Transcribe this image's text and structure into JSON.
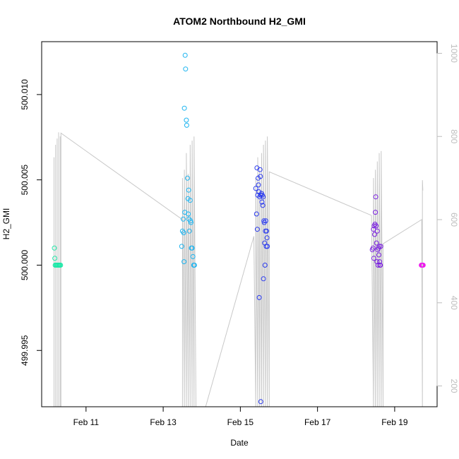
{
  "chart_data": {
    "type": "scatter",
    "title": "ATOM2 Northbound H2_GMI",
    "xlabel": "Date",
    "ylabel": "H2_GMI",
    "x_ticks": [
      {
        "label": "Feb 11",
        "value": 11
      },
      {
        "label": "Feb 13",
        "value": 13
      },
      {
        "label": "Feb 15",
        "value": 15
      },
      {
        "label": "Feb 17",
        "value": 17
      },
      {
        "label": "Feb 19",
        "value": 19
      }
    ],
    "xlim": [
      9.85,
      20.1
    ],
    "ylim": [
      499.9917,
      500.0131
    ],
    "y_ticks": [
      {
        "label": "499.995",
        "value": 499.995
      },
      {
        "label": "500.000",
        "value": 500.0
      },
      {
        "label": "500.005",
        "value": 500.005
      },
      {
        "label": "500.010",
        "value": 500.01
      }
    ],
    "y2_ticks": [
      {
        "label": "200",
        "value": 200
      },
      {
        "label": "400",
        "value": 400
      },
      {
        "label": "600",
        "value": 600
      },
      {
        "label": "800",
        "value": 800
      },
      {
        "label": "1000",
        "value": 1000
      }
    ],
    "y2lim": [
      1028,
      150
    ],
    "colors": {
      "pressure": "#c8c8c8",
      "axis": "#000000",
      "right_axis": "#bdbdbd",
      "group_feb10": "#1ee8a8",
      "group_feb13": "#1cb4f0",
      "group_feb15": "#2a3aee",
      "group_feb18": "#7a20e0",
      "group_feb19": "#ee1cee"
    },
    "series": [
      {
        "color_key": "group_feb10",
        "points": [
          [
            10.18,
            500.001
          ],
          [
            10.19,
            500.0004
          ],
          [
            10.2,
            500.0
          ],
          [
            10.22,
            500.0
          ],
          [
            10.24,
            500.0
          ],
          [
            10.26,
            500.0
          ],
          [
            10.28,
            500.0
          ],
          [
            10.3,
            500.0
          ],
          [
            10.32,
            500.0
          ],
          [
            10.34,
            500.0
          ]
        ]
      },
      {
        "color_key": "group_feb13",
        "points": [
          [
            13.48,
            500.0011
          ],
          [
            13.5,
            500.002
          ],
          [
            13.52,
            500.0027
          ],
          [
            13.53,
            500.0019
          ],
          [
            13.54,
            500.0002
          ],
          [
            13.55,
            500.0092
          ],
          [
            13.56,
            500.0031
          ],
          [
            13.57,
            500.0123
          ],
          [
            13.58,
            500.0115
          ],
          [
            13.6,
            500.0085
          ],
          [
            13.61,
            500.0082
          ],
          [
            13.63,
            500.0051
          ],
          [
            13.64,
            500.0039
          ],
          [
            13.65,
            500.003
          ],
          [
            13.66,
            500.0044
          ],
          [
            13.67,
            500.0027
          ],
          [
            13.68,
            500.002
          ],
          [
            13.7,
            500.0038
          ],
          [
            13.71,
            500.0026
          ],
          [
            13.72,
            500.0025
          ],
          [
            13.73,
            500.001
          ],
          [
            13.75,
            500.001
          ],
          [
            13.77,
            500.0005
          ],
          [
            13.79,
            500.0
          ],
          [
            13.81,
            500.0
          ]
        ]
      },
      {
        "color_key": "group_feb15",
        "points": [
          [
            15.4,
            500.0045
          ],
          [
            15.42,
            500.003
          ],
          [
            15.43,
            500.0057
          ],
          [
            15.44,
            500.0021
          ],
          [
            15.45,
            500.0041
          ],
          [
            15.46,
            500.0051
          ],
          [
            15.47,
            500.0047
          ],
          [
            15.48,
            500.0043
          ],
          [
            15.49,
            499.9981
          ],
          [
            15.5,
            500.004
          ],
          [
            15.51,
            500.0056
          ],
          [
            15.52,
            500.0052
          ],
          [
            15.53,
            500.0041
          ],
          [
            15.53,
            499.992
          ],
          [
            15.55,
            500.0042
          ],
          [
            15.56,
            500.0037
          ],
          [
            15.57,
            500.0041
          ],
          [
            15.58,
            500.0035
          ],
          [
            15.59,
            500.004
          ],
          [
            15.6,
            499.9992
          ],
          [
            15.61,
            500.0026
          ],
          [
            15.62,
            500.0025
          ],
          [
            15.63,
            500.0013
          ],
          [
            15.64,
            500.0
          ],
          [
            15.65,
            500.002
          ],
          [
            15.66,
            500.0026
          ],
          [
            15.67,
            500.0011
          ],
          [
            15.68,
            500.002
          ],
          [
            15.69,
            500.0016
          ],
          [
            15.7,
            500.0011
          ]
        ]
      },
      {
        "color_key": "group_feb18",
        "points": [
          [
            18.42,
            500.0009
          ],
          [
            18.44,
            500.001
          ],
          [
            18.45,
            500.0021
          ],
          [
            18.46,
            500.0004
          ],
          [
            18.47,
            500.0023
          ],
          [
            18.48,
            500.0018
          ],
          [
            18.49,
            500.0024
          ],
          [
            18.5,
            500.0031
          ],
          [
            18.51,
            500.004
          ],
          [
            18.52,
            500.0023
          ],
          [
            18.53,
            500.0013
          ],
          [
            18.54,
            500.0002
          ],
          [
            18.55,
            500.002
          ],
          [
            18.56,
            500.0009
          ],
          [
            18.57,
            500.0
          ],
          [
            18.58,
            500.001
          ],
          [
            18.59,
            500.0006
          ],
          [
            18.6,
            500.0011
          ],
          [
            18.61,
            500.0002
          ],
          [
            18.62,
            500.0
          ],
          [
            18.63,
            500.0
          ],
          [
            18.64,
            500.0011
          ]
        ]
      },
      {
        "color_key": "group_feb19",
        "points": [
          [
            19.69,
            500.0
          ],
          [
            19.7,
            500.0
          ],
          [
            19.71,
            500.0
          ],
          [
            19.72,
            500.0
          ],
          [
            19.73,
            500.0
          ],
          [
            19.74,
            500.0
          ]
        ]
      }
    ],
    "pressure_series": {
      "axis": "right",
      "points": [
        [
          10.17,
          150
        ],
        [
          10.17,
          750
        ],
        [
          10.17,
          150
        ],
        [
          10.21,
          150
        ],
        [
          10.21,
          780
        ],
        [
          10.21,
          150
        ],
        [
          10.25,
          150
        ],
        [
          10.25,
          795
        ],
        [
          10.25,
          150
        ],
        [
          10.29,
          150
        ],
        [
          10.29,
          810
        ],
        [
          10.29,
          150
        ],
        [
          10.33,
          150
        ],
        [
          10.33,
          800
        ],
        [
          10.33,
          150
        ],
        [
          10.35,
          150
        ],
        [
          10.35,
          808
        ],
        [
          13.5,
          600
        ],
        [
          13.5,
          150
        ],
        [
          13.5,
          700
        ],
        [
          13.55,
          150
        ],
        [
          13.55,
          720
        ],
        [
          13.6,
          150
        ],
        [
          13.6,
          760
        ],
        [
          13.65,
          150
        ],
        [
          13.65,
          710
        ],
        [
          13.7,
          150
        ],
        [
          13.7,
          780
        ],
        [
          13.75,
          150
        ],
        [
          13.75,
          790
        ],
        [
          13.8,
          150
        ],
        [
          13.8,
          800
        ],
        [
          13.85,
          150
        ],
        [
          14.1,
          150
        ],
        [
          15.35,
          560
        ],
        [
          15.4,
          150
        ],
        [
          15.4,
          700
        ],
        [
          15.45,
          150
        ],
        [
          15.45,
          750
        ],
        [
          15.5,
          150
        ],
        [
          15.5,
          720
        ],
        [
          15.55,
          150
        ],
        [
          15.55,
          760
        ],
        [
          15.6,
          150
        ],
        [
          15.6,
          780
        ],
        [
          15.65,
          150
        ],
        [
          15.65,
          790
        ],
        [
          15.7,
          150
        ],
        [
          15.7,
          800
        ],
        [
          15.75,
          150
        ],
        [
          15.75,
          715
        ],
        [
          18.4,
          610
        ],
        [
          18.45,
          150
        ],
        [
          18.45,
          700
        ],
        [
          18.5,
          150
        ],
        [
          18.5,
          720
        ],
        [
          18.55,
          150
        ],
        [
          18.55,
          740
        ],
        [
          18.6,
          150
        ],
        [
          18.6,
          760
        ],
        [
          18.65,
          150
        ],
        [
          18.65,
          765
        ],
        [
          18.7,
          150
        ],
        [
          18.7,
          542
        ],
        [
          19.7,
          600
        ],
        [
          19.72,
          150
        ],
        [
          19.72,
          695
        ],
        [
          19.73,
          670
        ]
      ]
    }
  }
}
